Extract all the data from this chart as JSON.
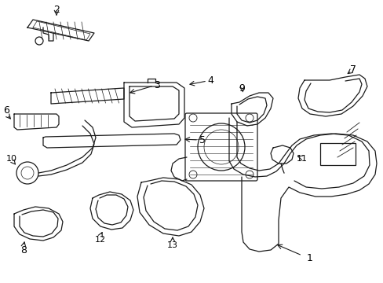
{
  "bg_color": "#ffffff",
  "line_color": "#1a1a1a",
  "label_color": "#000000",
  "font_size": 9,
  "figsize": [
    4.89,
    3.6
  ],
  "dpi": 100
}
